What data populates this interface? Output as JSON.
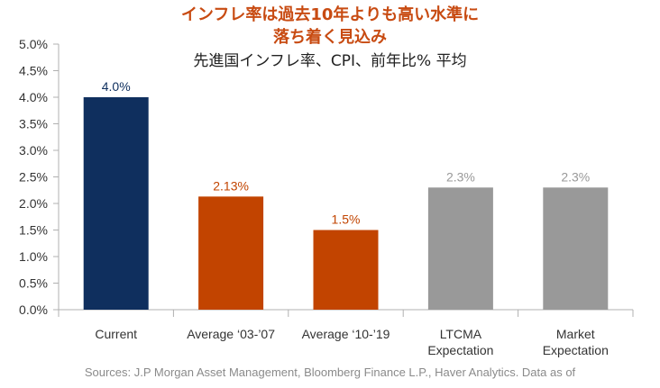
{
  "colors": {
    "title": "#c84b12",
    "axis": "#b0b0b0",
    "tick_text": "#333333",
    "label_text": "#555555",
    "navy": "#0f2f5e",
    "orange": "#c24400",
    "gray": "#999999"
  },
  "chart_data": {
    "type": "bar",
    "title_line1": "インフレ率は過去10年よりも高い水準に",
    "title_line2": "落ち着く見込み",
    "subtitle": "先進国インフレ率、CPI、前年比% 平均",
    "source": "Sources: J.P Morgan Asset Management, Bloomberg Finance L.P., Haver Analytics. Data as of",
    "ylim": [
      0,
      5
    ],
    "yticks": [
      "0.0%",
      "0.5%",
      "1.0%",
      "1.5%",
      "2.0%",
      "2.5%",
      "3.0%",
      "3.5%",
      "4.0%",
      "4.5%",
      "5.0%"
    ],
    "grid": false,
    "bars": [
      {
        "category": [
          "Current"
        ],
        "value": 4.0,
        "label": "4.0%",
        "color": "navy"
      },
      {
        "category": [
          "Average ‘03-’07"
        ],
        "value": 2.13,
        "label": "2.13%",
        "color": "orange"
      },
      {
        "category": [
          "Average ‘10-’19"
        ],
        "value": 1.5,
        "label": "1.5%",
        "color": "orange"
      },
      {
        "category": [
          "LTCMA",
          "Expectation"
        ],
        "value": 2.3,
        "label": "2.3%",
        "color": "gray"
      },
      {
        "category": [
          "Market",
          "Expectation"
        ],
        "value": 2.3,
        "label": "2.3%",
        "color": "gray"
      }
    ]
  }
}
